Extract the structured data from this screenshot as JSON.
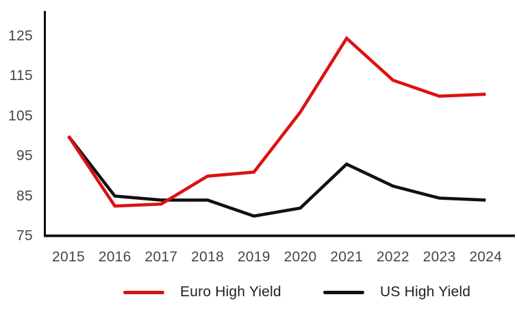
{
  "chart_data": {
    "type": "line",
    "title": "",
    "xlabel": "",
    "ylabel": "",
    "x": [
      "2015",
      "2016",
      "2017",
      "2018",
      "2019",
      "2020",
      "2021",
      "2022",
      "2023",
      "2024"
    ],
    "ylim": [
      75,
      125
    ],
    "yticks": [
      75,
      85,
      95,
      105,
      115,
      125
    ],
    "grid": false,
    "legend_position": "bottom",
    "series": [
      {
        "name": "Euro High Yield",
        "color": "#dd1111",
        "values": [
          100,
          82.5,
          83,
          90,
          91,
          106,
          124.5,
          114,
          110,
          110.5
        ]
      },
      {
        "name": "US High Yield",
        "color": "#111111",
        "values": [
          100,
          85,
          84,
          84,
          80,
          82,
          93,
          87.5,
          84.5,
          84
        ]
      }
    ],
    "axis_color": "#0a0a0a"
  },
  "legend": {
    "items": [
      {
        "label": "Euro High Yield",
        "color": "#dd1111"
      },
      {
        "label": "US High Yield",
        "color": "#111111"
      }
    ]
  }
}
